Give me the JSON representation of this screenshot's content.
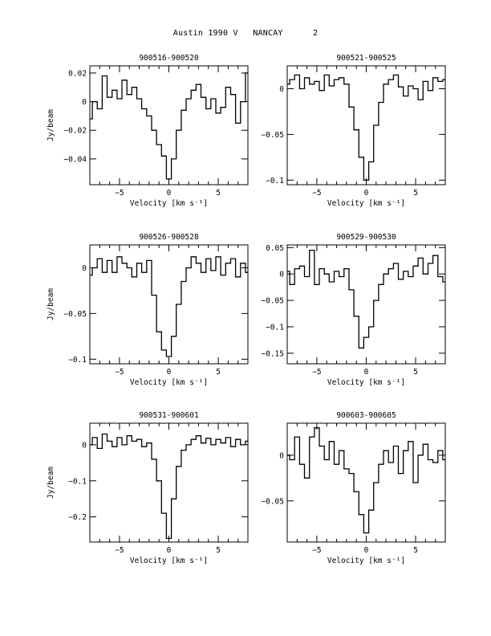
{
  "header": {
    "title": "Austin 1990 V   NANCAY      2"
  },
  "chart_data": [
    {
      "type": "line",
      "title": "900516-900520",
      "xlabel": "Velocity [km s⁻¹]",
      "ylabel": "Jy/beam",
      "xlim": [
        -8,
        8
      ],
      "ylim": [
        -0.058,
        0.025
      ],
      "xticks": [
        -5,
        0,
        5
      ],
      "yticks": [
        0.02,
        0,
        -0.02,
        -0.04
      ],
      "ytick_labels": [
        "0.02",
        "0",
        "−0.02",
        "−0.04"
      ],
      "x": [
        -8,
        -7.5,
        -7,
        -6.5,
        -6,
        -5.5,
        -5,
        -4.5,
        -4,
        -3.5,
        -3,
        -2.5,
        -2,
        -1.5,
        -1,
        -0.5,
        0,
        0.5,
        1,
        1.5,
        2,
        2.5,
        3,
        3.5,
        4,
        4.5,
        5,
        5.5,
        6,
        6.5,
        7,
        7.5,
        8
      ],
      "y": [
        -0.012,
        0.0,
        -0.005,
        0.018,
        0.003,
        0.008,
        0.002,
        0.015,
        0.005,
        0.01,
        0.002,
        -0.005,
        -0.01,
        -0.02,
        -0.03,
        -0.038,
        -0.054,
        -0.04,
        -0.02,
        -0.006,
        0.002,
        0.008,
        0.012,
        0.003,
        -0.005,
        0.002,
        -0.008,
        -0.004,
        0.01,
        0.005,
        -0.015,
        0.0,
        0.02
      ]
    },
    {
      "type": "line",
      "title": "900521-900525",
      "xlabel": "Velocity [km s⁻¹]",
      "ylabel": "",
      "xlim": [
        -8,
        8
      ],
      "ylim": [
        -0.105,
        0.025
      ],
      "xticks": [
        -5,
        0,
        5
      ],
      "yticks": [
        0,
        -0.05,
        -0.1
      ],
      "ytick_labels": [
        "0",
        "−0.05",
        "−0.1"
      ],
      "x": [
        -8,
        -7.5,
        -7,
        -6.5,
        -6,
        -5.5,
        -5,
        -4.5,
        -4,
        -3.5,
        -3,
        -2.5,
        -2,
        -1.5,
        -1,
        -0.5,
        0,
        0.5,
        1,
        1.5,
        2,
        2.5,
        3,
        3.5,
        4,
        4.5,
        5,
        5.5,
        6,
        6.5,
        7,
        7.5,
        8
      ],
      "y": [
        0.005,
        0.01,
        0.015,
        0.0,
        0.012,
        0.005,
        0.008,
        -0.002,
        0.015,
        0.003,
        0.01,
        0.012,
        0.005,
        -0.02,
        -0.045,
        -0.075,
        -0.1,
        -0.08,
        -0.04,
        -0.015,
        0.005,
        0.01,
        0.015,
        0.002,
        -0.008,
        0.003,
        0.0,
        -0.012,
        0.008,
        -0.002,
        0.012,
        0.008,
        0.01
      ]
    },
    {
      "type": "line",
      "title": "900526-900528",
      "xlabel": "Velocity [km s⁻¹]",
      "ylabel": "Jy/beam",
      "xlim": [
        -8,
        8
      ],
      "ylim": [
        -0.105,
        0.025
      ],
      "xticks": [
        -5,
        0,
        5
      ],
      "yticks": [
        0,
        -0.05,
        -0.1
      ],
      "ytick_labels": [
        "0",
        "−0.05",
        "−0.1"
      ],
      "x": [
        -8,
        -7.5,
        -7,
        -6.5,
        -6,
        -5.5,
        -5,
        -4.5,
        -4,
        -3.5,
        -3,
        -2.5,
        -2,
        -1.5,
        -1,
        -0.5,
        0,
        0.5,
        1,
        1.5,
        2,
        2.5,
        3,
        3.5,
        4,
        4.5,
        5,
        5.5,
        6,
        6.5,
        7,
        7.5,
        8
      ],
      "y": [
        -0.008,
        0.0,
        0.01,
        -0.005,
        0.008,
        -0.005,
        0.012,
        0.005,
        0.0,
        -0.01,
        0.005,
        -0.005,
        0.008,
        -0.03,
        -0.07,
        -0.09,
        -0.097,
        -0.075,
        -0.04,
        -0.015,
        0.0,
        0.012,
        0.005,
        -0.005,
        0.01,
        -0.003,
        0.012,
        -0.008,
        0.005,
        0.01,
        -0.01,
        0.005,
        -0.005
      ]
    },
    {
      "type": "line",
      "title": "900529-900530",
      "xlabel": "Velocity [km s⁻¹]",
      "ylabel": "",
      "xlim": [
        -8,
        8
      ],
      "ylim": [
        -0.17,
        0.055
      ],
      "xticks": [
        -5,
        0,
        5
      ],
      "yticks": [
        0.05,
        0,
        -0.05,
        -0.1,
        -0.15
      ],
      "ytick_labels": [
        "0.05",
        "0",
        "−0.05",
        "−0.1",
        "−0.15"
      ],
      "x": [
        -8,
        -7.5,
        -7,
        -6.5,
        -6,
        -5.5,
        -5,
        -4.5,
        -4,
        -3.5,
        -3,
        -2.5,
        -2,
        -1.5,
        -1,
        -0.5,
        0,
        0.5,
        1,
        1.5,
        2,
        2.5,
        3,
        3.5,
        4,
        4.5,
        5,
        5.5,
        6,
        6.5,
        7,
        7.5,
        8
      ],
      "y": [
        0.005,
        -0.02,
        0.01,
        0.015,
        -0.005,
        0.045,
        -0.02,
        0.01,
        0.0,
        -0.015,
        0.005,
        -0.005,
        0.01,
        -0.03,
        -0.08,
        -0.14,
        -0.12,
        -0.1,
        -0.05,
        -0.02,
        0.0,
        0.01,
        0.02,
        -0.01,
        0.005,
        -0.005,
        0.015,
        0.03,
        0.0,
        0.02,
        0.035,
        -0.005,
        -0.015
      ]
    },
    {
      "type": "line",
      "title": "900531-900601",
      "xlabel": "Velocity [km s⁻¹]",
      "ylabel": "Jy/beam",
      "xlim": [
        -8,
        8
      ],
      "ylim": [
        -0.27,
        0.06
      ],
      "xticks": [
        -5,
        0,
        5
      ],
      "yticks": [
        0,
        -0.1,
        -0.2
      ],
      "ytick_labels": [
        "0",
        "−0.1",
        "−0.2"
      ],
      "x": [
        -8,
        -7.5,
        -7,
        -6.5,
        -6,
        -5.5,
        -5,
        -4.5,
        -4,
        -3.5,
        -3,
        -2.5,
        -2,
        -1.5,
        -1,
        -0.5,
        0,
        0.5,
        1,
        1.5,
        2,
        2.5,
        3,
        3.5,
        4,
        4.5,
        5,
        5.5,
        6,
        6.5,
        7,
        7.5,
        8
      ],
      "y": [
        0.0,
        0.02,
        -0.01,
        0.03,
        0.01,
        -0.005,
        0.02,
        0.0,
        0.025,
        0.01,
        0.015,
        -0.005,
        0.005,
        -0.04,
        -0.1,
        -0.19,
        -0.26,
        -0.15,
        -0.06,
        -0.015,
        0.0,
        0.015,
        0.025,
        0.005,
        0.018,
        0.0,
        0.015,
        0.005,
        0.02,
        -0.005,
        0.015,
        0.0,
        0.01
      ]
    },
    {
      "type": "line",
      "title": "900603-900605",
      "xlabel": "Velocity [km s⁻¹]",
      "ylabel": "",
      "xlim": [
        -8,
        8
      ],
      "ylim": [
        -0.095,
        0.035
      ],
      "xticks": [
        -5,
        0,
        5
      ],
      "yticks": [
        0,
        -0.05
      ],
      "ytick_labels": [
        "0",
        "−0.05"
      ],
      "x": [
        -8,
        -7.5,
        -7,
        -6.5,
        -6,
        -5.5,
        -5,
        -4.5,
        -4,
        -3.5,
        -3,
        -2.5,
        -2,
        -1.5,
        -1,
        -0.5,
        0,
        0.5,
        1,
        1.5,
        2,
        2.5,
        3,
        3.5,
        4,
        4.5,
        5,
        5.5,
        6,
        6.5,
        7,
        7.5,
        8
      ],
      "y": [
        0.0,
        -0.005,
        0.02,
        -0.01,
        -0.025,
        0.02,
        0.03,
        0.01,
        -0.005,
        0.015,
        -0.01,
        0.005,
        -0.015,
        -0.02,
        -0.04,
        -0.065,
        -0.085,
        -0.06,
        -0.03,
        -0.01,
        0.005,
        -0.008,
        0.01,
        -0.02,
        0.005,
        0.015,
        -0.03,
        0.0,
        0.012,
        -0.005,
        -0.008,
        0.005,
        -0.005
      ]
    }
  ]
}
